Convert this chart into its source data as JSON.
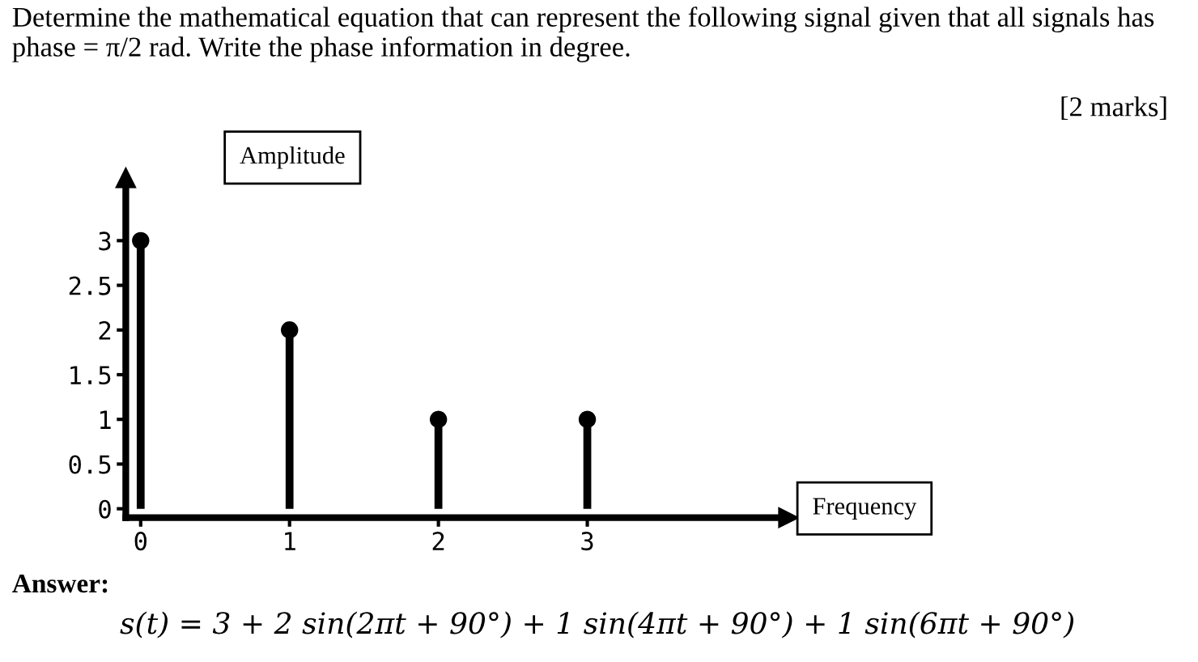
{
  "chart_data": {
    "type": "lollipop",
    "title": "Determine the mathematical equation that can represent the following signal given that all signals has phase = π/2 rad. Write the phase information in degree.",
    "annotations": [
      "[2 marks]",
      "Answer:",
      "s(t) = 3 + 2 sin(2πt + 90°) + 1 sin(4πt + 90°) + 1 sin(6πt + 90°)"
    ],
    "xlabel": "Frequency",
    "ylabel": "Amplitude",
    "x": [
      0,
      1,
      2,
      3
    ],
    "values": [
      3,
      2,
      1,
      1
    ],
    "color": "#000000",
    "marker": "circle",
    "xlim": [
      -0.1,
      4.35
    ],
    "ylim": [
      -0.1,
      3.7
    ],
    "xticks": [
      0,
      1,
      2,
      3
    ],
    "yticks": [
      0,
      0.5,
      1,
      1.5,
      2,
      2.5,
      3
    ]
  }
}
